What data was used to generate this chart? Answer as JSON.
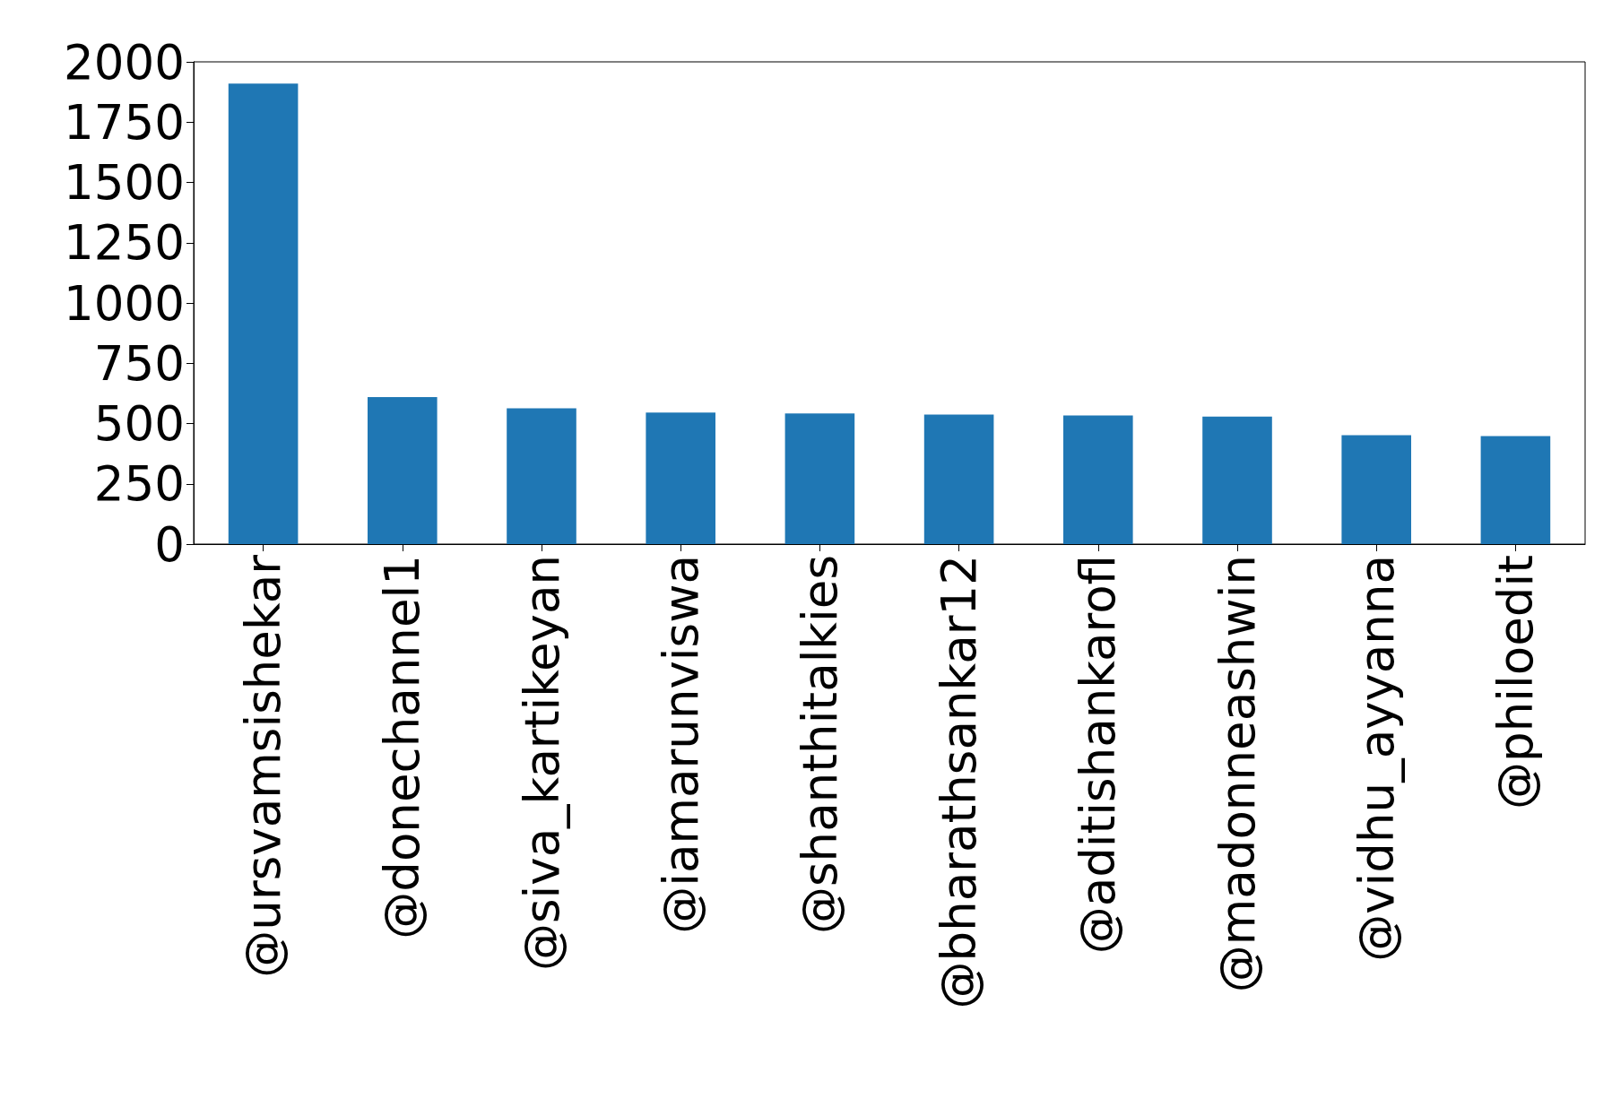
{
  "chart_data": {
    "type": "bar",
    "categories": [
      "@ursvamsishekar",
      "@donechannel1",
      "@siva_kartikeyan",
      "@iamarunviswa",
      "@shanthitalkies",
      "@bharathsankar12",
      "@aditishankarofl",
      "@madonneashwin",
      "@vidhu_ayyanna",
      "@philoedit"
    ],
    "values": [
      1910,
      610,
      563,
      546,
      542,
      537,
      533,
      529,
      452,
      448
    ],
    "color": "#1f77b4",
    "ylim": [
      0,
      2000
    ],
    "yticks": [
      0,
      250,
      500,
      750,
      1000,
      1250,
      1500,
      1750,
      2000
    ],
    "grid": false
  }
}
